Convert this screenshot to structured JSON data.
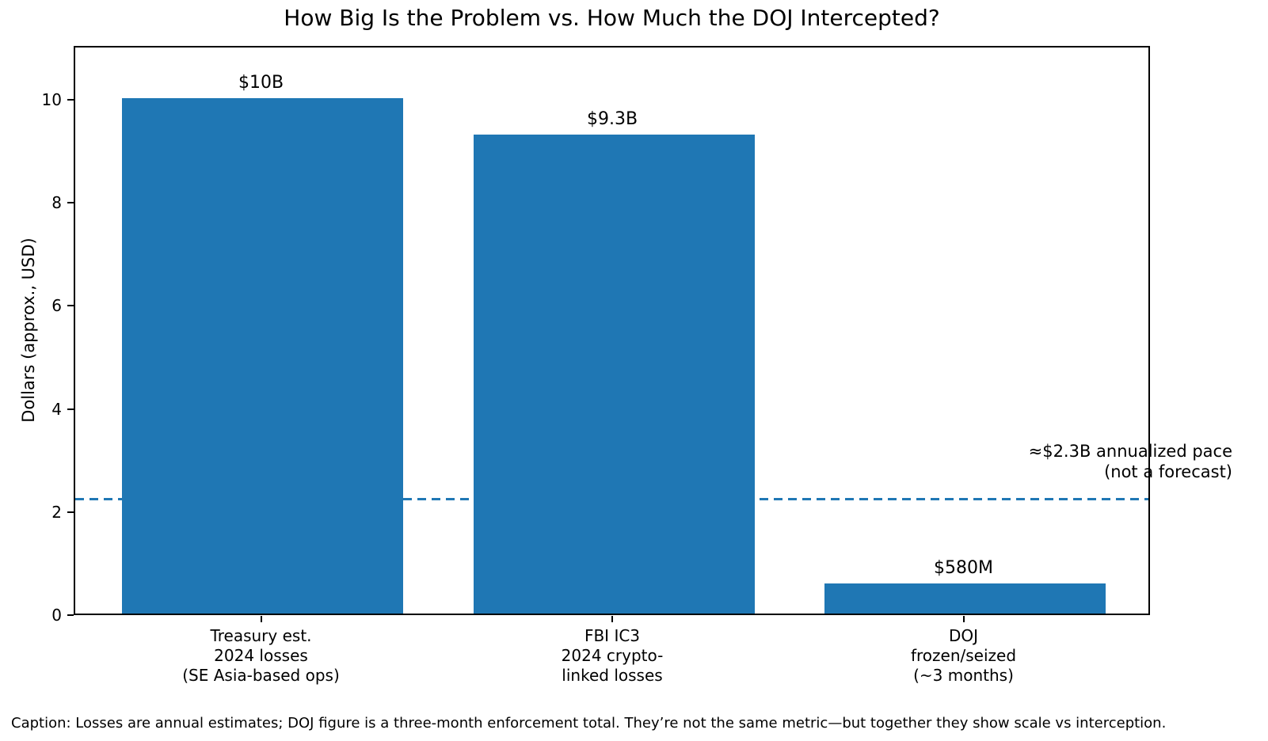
{
  "chart_data": {
    "type": "bar",
    "title": "How Big Is the Problem vs. How Much the DOJ Intercepted?",
    "ylabel": "Dollars (approx., USD)",
    "xlabel": "",
    "categories": [
      "Treasury est.\n2024 losses\n(SE Asia-based ops)",
      "FBI IC3\n2024 crypto-\nlinked losses",
      "DOJ\nfrozen/seized\n(~3 months)"
    ],
    "values": [
      10,
      9.3,
      0.58
    ],
    "bar_value_labels": [
      "$10B",
      "$9.3B",
      "$580M"
    ],
    "bar_color": "#1f77b4",
    "yticks": [
      0,
      2,
      4,
      6,
      8,
      10
    ],
    "ylim": [
      0,
      11.03
    ],
    "grid": false,
    "legend": "none",
    "reference_line": {
      "y": 2.3,
      "style": "dashed",
      "color": "#1f77b4",
      "annotation": "≈$2.3B annualized pace\n(not a forecast)"
    },
    "caption": "Caption: Losses are annual estimates; DOJ figure is a three-month enforcement total. They’re not the same metric—but together they show scale vs interception."
  }
}
